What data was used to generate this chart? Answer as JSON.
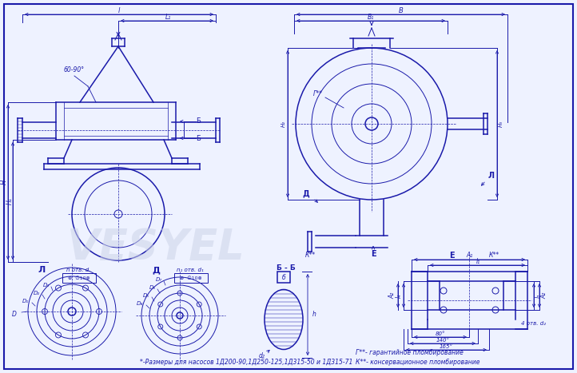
{
  "bg_color": "#eef2ff",
  "line_color": "#1a1aaa",
  "text_color": "#1a1aaa",
  "watermark_color": "#c8d0e8",
  "footnote": "*-Размеры для насосов 1Д200-90,1Д250-125,1Д315-50 и 1Д315-71",
  "note1": "Г**- гарантийное пломбирование",
  "note2": "К**- консервационное пломбирование"
}
